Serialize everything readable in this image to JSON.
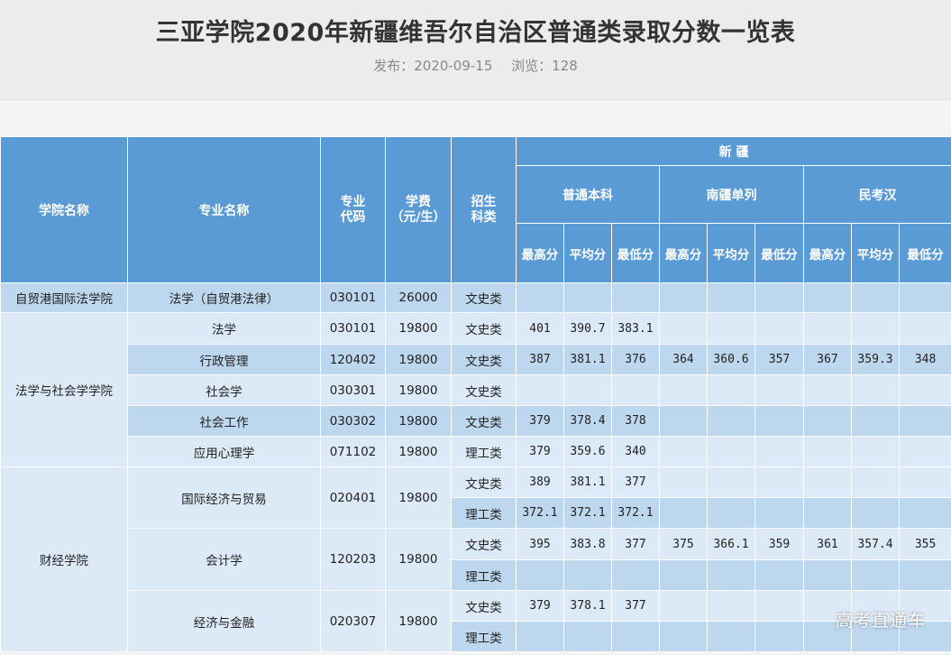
{
  "page": {
    "title": "三亚学院2020年新疆维吾尔自治区普通类录取分数一览表",
    "publish_label": "发布：2020-09-15",
    "views_label": "浏览：128",
    "watermark": "高考直通车"
  },
  "table": {
    "headers": {
      "college": "学院名称",
      "major": "专业名称",
      "code_l1": "专业",
      "code_l2": "代码",
      "fee_l1": "学费",
      "fee_l2": "（元/生）",
      "type_l1": "招生",
      "type_l2": "科类",
      "region": "新 疆",
      "group1": "普通本科",
      "group2": "南疆单列",
      "group3": "民考汉",
      "max": "最高分",
      "avg": "平均分",
      "min": "最低分"
    },
    "colors": {
      "header_bg": "#5b9bd5",
      "row_light": "#dce9f6",
      "row_dark": "#bdd7ee"
    },
    "rows": [
      {
        "college": "自贸港国际法学院",
        "major": "法学（自贸港法律）",
        "code": "030101",
        "fee": "26000",
        "type": "文史类",
        "c": [
          "",
          "",
          "",
          "",
          "",
          "",
          "",
          "",
          ""
        ]
      },
      {
        "college": "法学与社会学学院",
        "major": "法学",
        "code": "030101",
        "fee": "19800",
        "type": "文史类",
        "c": [
          "401",
          "390.7",
          "383.1",
          "",
          "",
          "",
          "",
          "",
          ""
        ]
      },
      {
        "major": "行政管理",
        "code": "120402",
        "fee": "19800",
        "type": "文史类",
        "c": [
          "387",
          "381.1",
          "376",
          "364",
          "360.6",
          "357",
          "367",
          "359.3",
          "348"
        ]
      },
      {
        "major": "社会学",
        "code": "030301",
        "fee": "19800",
        "type": "文史类",
        "c": [
          "",
          "",
          "",
          "",
          "",
          "",
          "",
          "",
          ""
        ]
      },
      {
        "major": "社会工作",
        "code": "030302",
        "fee": "19800",
        "type": "文史类",
        "c": [
          "379",
          "378.4",
          "378",
          "",
          "",
          "",
          "",
          "",
          ""
        ]
      },
      {
        "major": "应用心理学",
        "code": "071102",
        "fee": "19800",
        "type": "理工类",
        "c": [
          "379",
          "359.6",
          "340",
          "",
          "",
          "",
          "",
          "",
          ""
        ]
      },
      {
        "college": "财经学院",
        "major": "国际经济与贸易",
        "code": "020401",
        "fee": "19800",
        "type": "文史类",
        "c": [
          "389",
          "381.1",
          "377",
          "",
          "",
          "",
          "",
          "",
          ""
        ]
      },
      {
        "type": "理工类",
        "c": [
          "372.1",
          "372.1",
          "372.1",
          "",
          "",
          "",
          "",
          "",
          ""
        ]
      },
      {
        "major": "会计学",
        "code": "120203",
        "fee": "19800",
        "type": "文史类",
        "c": [
          "395",
          "383.8",
          "377",
          "375",
          "366.1",
          "359",
          "361",
          "357.4",
          "355"
        ]
      },
      {
        "type": "理工类",
        "c": [
          "",
          "",
          "",
          "",
          "",
          "",
          "",
          "",
          ""
        ]
      },
      {
        "major": "经济与金融",
        "code": "020307",
        "fee": "19800",
        "type": "文史类",
        "c": [
          "379",
          "378.1",
          "377",
          "",
          "",
          "",
          "",
          "",
          ""
        ]
      },
      {
        "type": "理工类",
        "c": [
          "",
          "",
          "",
          "",
          "",
          "",
          "",
          "",
          ""
        ]
      }
    ]
  }
}
